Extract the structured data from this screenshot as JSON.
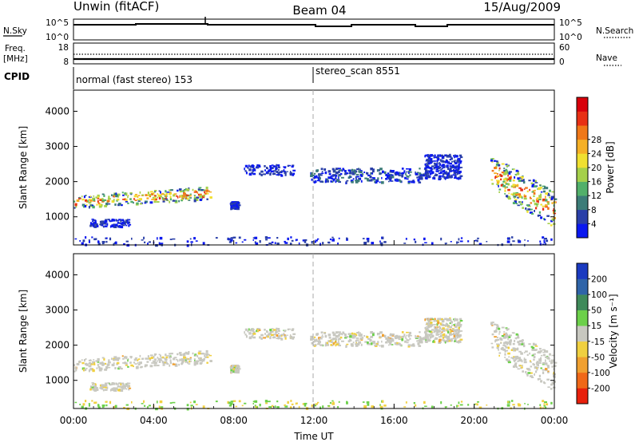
{
  "header": {
    "station": "Unwin (fitACF)",
    "beam": "Beam 04",
    "date": "15/Aug/2009"
  },
  "top_panels": {
    "nsky_label": "N.Sky",
    "nsearch_label": "N.Search",
    "noise_ticks_left": [
      "10^5",
      "10^0"
    ],
    "noise_ticks_right": [
      "10^5",
      "10^0"
    ],
    "freq_label_1": "Freq.",
    "freq_label_2": "[MHz]",
    "freq_ticks": [
      "18",
      "8"
    ],
    "nave_label": "Nave",
    "nave_ticks": [
      "60",
      "0"
    ],
    "cpid_label": "CPID",
    "cpid_segments": [
      {
        "label": "normal (fast stereo) 153",
        "start_hour": 0
      },
      {
        "label": "stereo_scan 8551",
        "start_hour": 12
      }
    ]
  },
  "chart_data": [
    {
      "type": "heatmap",
      "name": "power-panel",
      "ylabel": "Slant Range [km]",
      "yticks": [
        "1000",
        "2000",
        "3000",
        "4000"
      ],
      "ylim": [
        200,
        4600
      ],
      "xlim_hours": [
        0,
        24
      ],
      "colorbar_label": "Power [dB]",
      "colorbar_ticks": [
        "4",
        "8",
        "12",
        "16",
        "20",
        "24",
        "28"
      ],
      "colorbar_colors": [
        "#0a18f0",
        "#2a3fa8",
        "#3c7c78",
        "#52b06a",
        "#a5d04a",
        "#f0e030",
        "#f5b026",
        "#f07818",
        "#e83014",
        "#d8000a"
      ],
      "echo_regions": [
        {
          "t0": 0.0,
          "t1": 6.8,
          "r0": 1200,
          "r1": 1800,
          "intensity": "high"
        },
        {
          "t0": 0.8,
          "t1": 2.8,
          "r0": 750,
          "r1": 950,
          "intensity": "low"
        },
        {
          "t0": 7.8,
          "t1": 8.2,
          "r0": 1250,
          "r1": 1450,
          "intensity": "low"
        },
        {
          "t0": 8.5,
          "t1": 11.0,
          "r0": 2200,
          "r1": 2500,
          "intensity": "low"
        },
        {
          "t0": 11.8,
          "t1": 17.5,
          "r0": 2000,
          "r1": 2400,
          "intensity": "medium"
        },
        {
          "t0": 17.5,
          "t1": 19.3,
          "r0": 2100,
          "r1": 2800,
          "intensity": "low"
        },
        {
          "t0": 20.8,
          "t1": 24.0,
          "r0": 900,
          "r1": 2600,
          "intensity": "high"
        },
        {
          "t0": 0.0,
          "t1": 24.0,
          "r0": 220,
          "r1": 450,
          "intensity": "low"
        }
      ]
    },
    {
      "type": "heatmap",
      "name": "velocity-panel",
      "ylabel": "Slant Range [km]",
      "yticks": [
        "1000",
        "2000",
        "3000",
        "4000"
      ],
      "ylim": [
        200,
        4600
      ],
      "xlim_hours": [
        0,
        24
      ],
      "xticks": [
        "00:00",
        "04:00",
        "08:00",
        "12:00",
        "16:00",
        "20:00",
        "00:00"
      ],
      "xlabel": "Time UT",
      "colorbar_label": "Velocity [m s⁻¹]",
      "colorbar_ticks": [
        "200",
        "100",
        "50",
        "15",
        "-15",
        "-50",
        "-100",
        "-200"
      ],
      "colorbar_colors": [
        "#1a3ac0",
        "#2f64a8",
        "#3f8a5a",
        "#6cd04a",
        "#c8c8c0",
        "#f0d040",
        "#f0a030",
        "#f06818",
        "#e8200c"
      ]
    }
  ]
}
